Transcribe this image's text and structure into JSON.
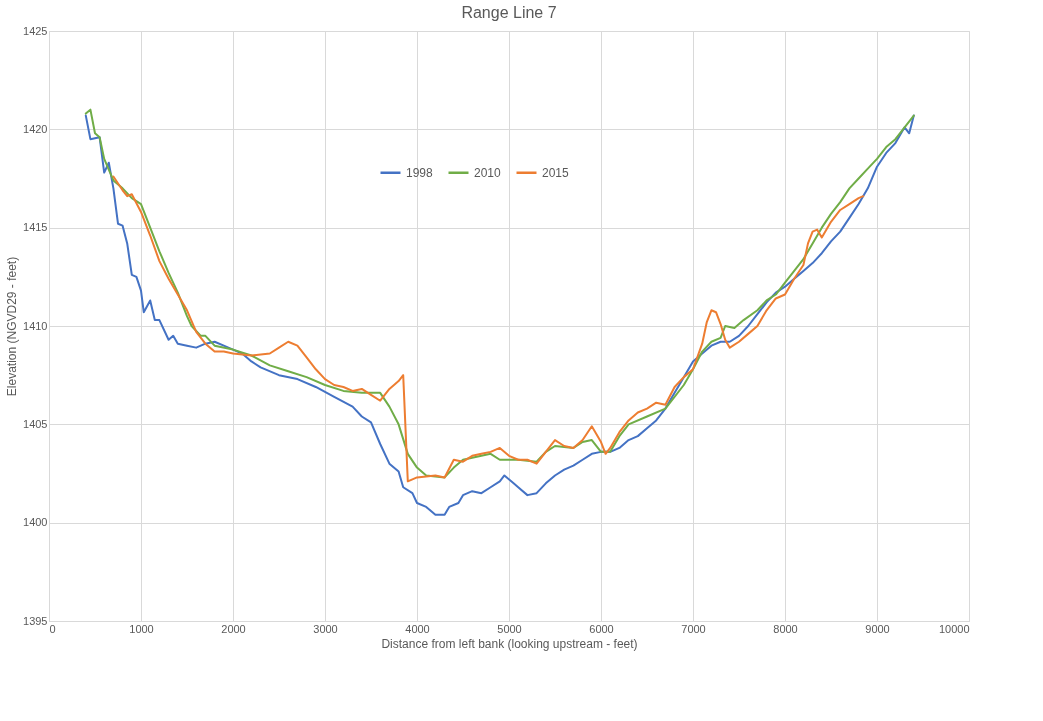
{
  "chart_data": {
    "type": "line",
    "title": "Range Line 7",
    "xlabel": "Distance from left bank (looking upstream - feet)",
    "ylabel": "Elevation (NGVD29 - feet)",
    "xlim": [
      0,
      10000
    ],
    "xticks": [
      0,
      1000,
      2000,
      3000,
      4000,
      5000,
      6000,
      7000,
      8000,
      9000,
      10000
    ],
    "ylim": [
      1395,
      1425
    ],
    "yticks": [
      1395,
      1400,
      1405,
      1410,
      1415,
      1420,
      1425
    ],
    "grid": true,
    "legend": "top",
    "marker": "none",
    "line_style": "solid",
    "series": [
      {
        "name": "1998",
        "color": "#4472c4",
        "x": [
          400,
          450,
          550,
          600,
          650,
          700,
          750,
          800,
          850,
          900,
          950,
          1000,
          1030,
          1100,
          1150,
          1200,
          1300,
          1350,
          1400,
          1500,
          1600,
          1700,
          1800,
          1900,
          2000,
          2100,
          2200,
          2300,
          2500,
          2700,
          2900,
          3100,
          3300,
          3400,
          3500,
          3600,
          3700,
          3800,
          3850,
          3950,
          4000,
          4100,
          4200,
          4300,
          4350,
          4450,
          4500,
          4600,
          4700,
          4800,
          4900,
          4950,
          5050,
          5100,
          5200,
          5300,
          5400,
          5500,
          5600,
          5700,
          5800,
          5900,
          6000,
          6100,
          6200,
          6300,
          6400,
          6500,
          6600,
          6700,
          6800,
          6900,
          7000,
          7100,
          7200,
          7300,
          7400,
          7500,
          7600,
          7700,
          7800,
          7900,
          8000,
          8100,
          8200,
          8300,
          8400,
          8500,
          8600,
          8700,
          8800,
          8900,
          9000,
          9100,
          9200,
          9300,
          9350,
          9400
        ],
        "values": [
          1420.7,
          1419.5,
          1419.6,
          1417.8,
          1418.3,
          1417,
          1415.2,
          1415.1,
          1414.2,
          1412.6,
          1412.5,
          1411.8,
          1410.7,
          1411.3,
          1410.3,
          1410.3,
          1409.3,
          1409.5,
          1409.1,
          1409.0,
          1408.9,
          1409.1,
          1409.2,
          1409,
          1408.8,
          1408.6,
          1408.2,
          1407.9,
          1407.5,
          1407.3,
          1406.9,
          1406.4,
          1405.9,
          1405.4,
          1405.1,
          1404,
          1403,
          1402.6,
          1401.8,
          1401.5,
          1401,
          1400.8,
          1400.4,
          1400.4,
          1400.8,
          1401.0,
          1401.4,
          1401.6,
          1401.5,
          1401.8,
          1402.1,
          1402.4,
          1402,
          1401.8,
          1401.4,
          1401.5,
          1402,
          1402.4,
          1402.7,
          1402.9,
          1403.2,
          1403.5,
          1403.6,
          1403.6,
          1403.8,
          1404.2,
          1404.4,
          1404.8,
          1405.2,
          1405.8,
          1406.6,
          1407.4,
          1408.2,
          1408.6,
          1409,
          1409.2,
          1409.2,
          1409.5,
          1410,
          1410.6,
          1411.2,
          1411.7,
          1412.0,
          1412.4,
          1412.8,
          1413.2,
          1413.7,
          1414.3,
          1414.8,
          1415.5,
          1416.2,
          1417,
          1418.1,
          1418.8,
          1419.3,
          1420.1,
          1419.8,
          1420.7
        ]
      },
      {
        "name": "2010",
        "color": "#70ad47",
        "x": [
          400,
          450,
          500,
          550,
          600,
          700,
          800,
          900,
          1000,
          1100,
          1200,
          1300,
          1400,
          1500,
          1550,
          1650,
          1700,
          1800,
          2000,
          2200,
          2400,
          2600,
          2800,
          3000,
          3200,
          3400,
          3600,
          3700,
          3800,
          3900,
          4000,
          4100,
          4300,
          4400,
          4500,
          4600,
          4800,
          4900,
          5100,
          5300,
          5400,
          5500,
          5700,
          5800,
          5900,
          6000,
          6100,
          6200,
          6300,
          6500,
          6700,
          6900,
          7000,
          7100,
          7200,
          7300,
          7350,
          7450,
          7550,
          7700,
          7800,
          7900,
          8000,
          8100,
          8200,
          8300,
          8400,
          8500,
          8600,
          8700,
          8800,
          8900,
          9000,
          9100,
          9200,
          9300,
          9400
        ],
        "values": [
          1420.8,
          1421,
          1419.8,
          1419.6,
          1418.5,
          1417.4,
          1417,
          1416.5,
          1416.2,
          1415,
          1413.8,
          1412.7,
          1411.7,
          1410.5,
          1410.0,
          1409.5,
          1409.5,
          1409,
          1408.8,
          1408.5,
          1408,
          1407.7,
          1407.4,
          1407,
          1406.7,
          1406.6,
          1406.6,
          1405.9,
          1405,
          1403.5,
          1402.8,
          1402.4,
          1402.3,
          1402.8,
          1403.2,
          1403.3,
          1403.5,
          1403.2,
          1403.2,
          1403.1,
          1403.6,
          1403.9,
          1403.8,
          1404.1,
          1404.2,
          1403.6,
          1403.6,
          1404.4,
          1405,
          1405.4,
          1405.8,
          1407,
          1407.8,
          1408.7,
          1409.2,
          1409.4,
          1410,
          1409.9,
          1410.3,
          1410.8,
          1411.3,
          1411.6,
          1412.2,
          1412.8,
          1413.4,
          1414.2,
          1415,
          1415.7,
          1416.3,
          1417,
          1417.5,
          1418,
          1418.5,
          1419.1,
          1419.5,
          1420.1,
          1420.7
        ]
      },
      {
        "name": "2015",
        "color": "#ed7d31",
        "x": [
          700,
          800,
          850,
          900,
          1000,
          1100,
          1200,
          1300,
          1400,
          1500,
          1600,
          1700,
          1800,
          1900,
          2000,
          2200,
          2400,
          2500,
          2600,
          2700,
          2800,
          2900,
          3000,
          3100,
          3200,
          3300,
          3400,
          3500,
          3600,
          3700,
          3800,
          3850,
          3900,
          4000,
          4200,
          4300,
          4400,
          4500,
          4600,
          4700,
          4800,
          4900,
          5000,
          5100,
          5200,
          5300,
          5400,
          5500,
          5600,
          5700,
          5800,
          5900,
          6000,
          6050,
          6100,
          6200,
          6300,
          6400,
          6500,
          6600,
          6700,
          6800,
          6900,
          7000,
          7100,
          7150,
          7200,
          7250,
          7300,
          7350,
          7400,
          7500,
          7600,
          7700,
          7800,
          7900,
          8000,
          8100,
          8200,
          8250,
          8300,
          8350,
          8400,
          8500,
          8600,
          8700,
          8800,
          8850
        ],
        "values": [
          1417.6,
          1416.9,
          1416.6,
          1416.7,
          1415.8,
          1414.6,
          1413.3,
          1412.4,
          1411.6,
          1410.8,
          1409.7,
          1409.1,
          1408.7,
          1408.7,
          1408.6,
          1408.5,
          1408.6,
          1408.9,
          1409.2,
          1409,
          1408.4,
          1407.8,
          1407.3,
          1407,
          1406.9,
          1406.7,
          1406.8,
          1406.5,
          1406.2,
          1406.8,
          1407.2,
          1407.5,
          1402.1,
          1402.3,
          1402.4,
          1402.3,
          1403.2,
          1403.1,
          1403.4,
          1403.5,
          1403.6,
          1403.8,
          1403.4,
          1403.2,
          1403.2,
          1403,
          1403.6,
          1404.2,
          1403.9,
          1403.8,
          1404.2,
          1404.9,
          1404.1,
          1403.5,
          1403.8,
          1404.6,
          1405.2,
          1405.6,
          1405.8,
          1406.1,
          1406,
          1406.9,
          1407.4,
          1407.8,
          1409.1,
          1410.2,
          1410.8,
          1410.7,
          1410.1,
          1409.3,
          1408.9,
          1409.2,
          1409.6,
          1410,
          1410.8,
          1411.4,
          1411.6,
          1412.4,
          1413.1,
          1414.2,
          1414.8,
          1414.9,
          1414.5,
          1415.3,
          1415.9,
          1416.2,
          1416.5,
          1416.6
        ]
      }
    ]
  }
}
